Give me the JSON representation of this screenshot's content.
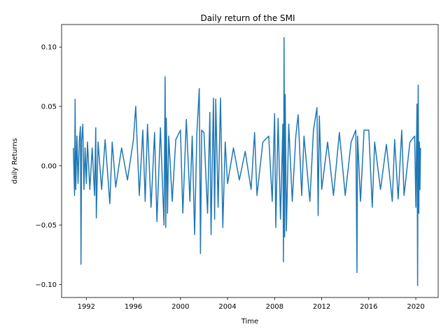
{
  "chart_data": {
    "type": "line",
    "title": "Daily return of the SMI",
    "xlabel": "Time",
    "ylabel": "daily Returns",
    "xlim": [
      1989.9,
      2021.9
    ],
    "ylim": [
      -0.111,
      0.119
    ],
    "x_ticks": [
      1992,
      1996,
      2000,
      2004,
      2008,
      2012,
      2016,
      2020
    ],
    "x_tick_labels": [
      "1992",
      "1996",
      "2000",
      "2004",
      "2008",
      "2012",
      "2016",
      "2020"
    ],
    "y_ticks": [
      0.1,
      0.05,
      0.0,
      -0.05,
      -0.1
    ],
    "y_tick_labels": [
      "0.10",
      "0.05",
      "0.00",
      "−0.05",
      "−0.10"
    ],
    "grid": false,
    "series": [
      {
        "color": "#1f77b4",
        "x": [
          1990.9,
          1991.0,
          1991.05,
          1991.1,
          1991.2,
          1991.3,
          1991.4,
          1991.5,
          1991.55,
          1991.6,
          1991.7,
          1991.8,
          1991.9,
          1992.0,
          1992.1,
          1992.3,
          1992.5,
          1992.7,
          1992.8,
          1992.85,
          1993.0,
          1993.3,
          1993.6,
          1994.0,
          1994.2,
          1994.5,
          1995.0,
          1995.5,
          1996.0,
          1996.2,
          1996.5,
          1996.8,
          1997.0,
          1997.2,
          1997.5,
          1997.8,
          1998.0,
          1998.3,
          1998.6,
          1998.7,
          1998.75,
          1998.8,
          1998.9,
          1999.0,
          1999.3,
          1999.6,
          2000.0,
          2000.2,
          2000.5,
          2000.8,
          2001.0,
          2001.2,
          2001.4,
          2001.6,
          2001.7,
          2001.8,
          2002.0,
          2002.3,
          2002.5,
          2002.6,
          2002.8,
          2002.9,
          2003.0,
          2003.2,
          2003.4,
          2003.6,
          2003.8,
          2004.0,
          2004.5,
          2005.0,
          2005.5,
          2006.0,
          2006.3,
          2006.5,
          2007.0,
          2007.5,
          2007.8,
          2008.0,
          2008.1,
          2008.3,
          2008.5,
          2008.7,
          2008.75,
          2008.8,
          2008.85,
          2008.9,
          2009.0,
          2009.2,
          2009.5,
          2009.8,
          2010.0,
          2010.3,
          2010.5,
          2011.0,
          2011.3,
          2011.6,
          2011.7,
          2011.8,
          2012.0,
          2012.5,
          2013.0,
          2013.5,
          2014.0,
          2014.5,
          2014.9,
          2015.0,
          2015.05,
          2015.3,
          2015.6,
          2016.0,
          2016.3,
          2016.5,
          2017.0,
          2017.5,
          2018.0,
          2018.2,
          2018.5,
          2018.8,
          2019.0,
          2019.5,
          2019.9,
          2020.0,
          2020.1,
          2020.15,
          2020.2,
          2020.25,
          2020.3,
          2020.35,
          2020.4
        ],
        "values": [
          0.015,
          -0.025,
          0.056,
          -0.02,
          0.025,
          -0.015,
          0.02,
          0.033,
          -0.083,
          0.02,
          0.035,
          -0.02,
          0.015,
          -0.015,
          0.02,
          -0.02,
          0.015,
          -0.025,
          0.032,
          -0.044,
          0.02,
          -0.02,
          0.022,
          -0.032,
          0.02,
          -0.018,
          0.015,
          -0.012,
          0.022,
          0.05,
          -0.025,
          0.03,
          -0.03,
          0.035,
          -0.035,
          0.028,
          -0.047,
          0.032,
          -0.05,
          0.075,
          -0.052,
          0.04,
          -0.04,
          0.025,
          -0.03,
          0.022,
          0.03,
          -0.04,
          0.039,
          -0.03,
          0.025,
          -0.058,
          0.028,
          0.065,
          -0.074,
          0.03,
          0.028,
          -0.04,
          0.045,
          -0.058,
          0.057,
          -0.045,
          0.056,
          -0.035,
          0.057,
          -0.052,
          0.02,
          -0.015,
          0.015,
          -0.012,
          0.012,
          -0.02,
          0.028,
          -0.025,
          0.02,
          0.025,
          -0.03,
          0.044,
          -0.052,
          0.04,
          -0.045,
          0.035,
          -0.081,
          0.108,
          -0.06,
          0.06,
          -0.055,
          0.035,
          -0.03,
          0.025,
          0.043,
          -0.025,
          0.025,
          -0.03,
          0.03,
          0.049,
          -0.042,
          0.042,
          -0.02,
          0.02,
          -0.025,
          0.028,
          -0.025,
          0.02,
          0.03,
          -0.09,
          0.025,
          -0.03,
          0.03,
          0.03,
          -0.035,
          0.02,
          -0.02,
          0.018,
          -0.03,
          0.022,
          -0.028,
          0.03,
          -0.025,
          0.02,
          0.025,
          -0.035,
          0.052,
          -0.101,
          0.068,
          -0.04,
          0.02,
          -0.02,
          0.015
        ]
      }
    ]
  }
}
